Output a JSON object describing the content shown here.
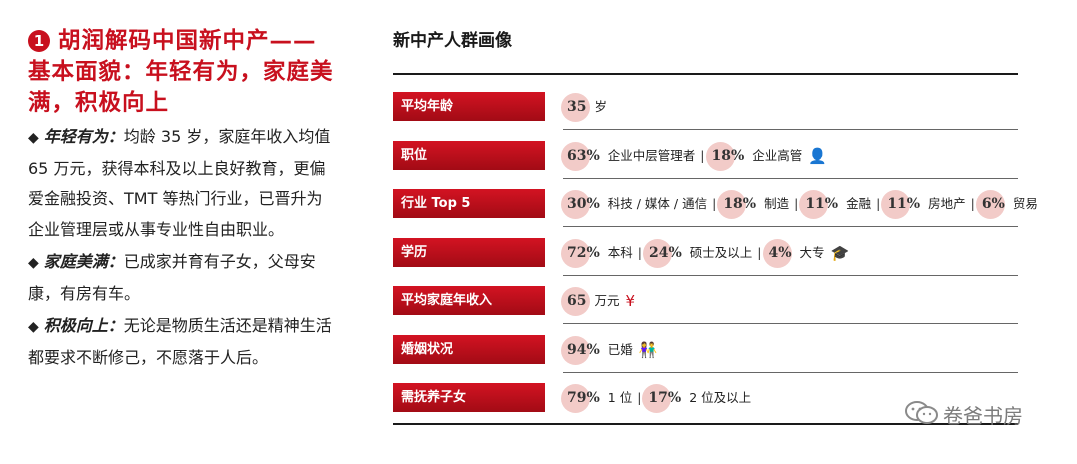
{
  "left": {
    "badge": "1",
    "heading": "胡润解码中国新中产——基本面貌：年轻有为，家庭美满，积极向上",
    "paragraphs": [
      {
        "bullet": "◆",
        "keyword": "年轻有为：",
        "text": "均龄 35 岁，家庭年收入均值 65 万元，获得本科及以上良好教育，更偏爱金融投资、TMT 等热门行业，已晋升为企业管理层或从事专业性自由职业。"
      },
      {
        "bullet": "◆",
        "keyword": "家庭美满：",
        "text": "已成家并育有子女，父母安康，有房有车。"
      },
      {
        "bullet": "◆",
        "keyword": "积极向上：",
        "text": "无论是物质生活还是精神生活都要求不断修己，不愿落于人后。"
      }
    ]
  },
  "panel": {
    "title": "新中产人群画像",
    "rows": [
      {
        "label": "平均年龄",
        "segments": [
          {
            "pct": "35",
            "after": " 岁"
          }
        ]
      },
      {
        "label": "职位",
        "icon": "person-icon",
        "icon_glyph": "👤",
        "segments": [
          {
            "pct": "63%",
            "after": " 企业中层管理者"
          },
          {
            "pct": "18%",
            "after": " 企业高管"
          }
        ]
      },
      {
        "label": "行业 Top 5",
        "segments": [
          {
            "pct": "30%",
            "after": " 科技 / 媒体 / 通信"
          },
          {
            "pct": "18%",
            "after": " 制造"
          },
          {
            "pct": "11%",
            "after": " 金融"
          },
          {
            "pct": "11%",
            "after": " 房地产"
          },
          {
            "pct": "6%",
            "after": " 贸易"
          }
        ]
      },
      {
        "label": "学历",
        "icon": "graduation-cap-icon",
        "icon_glyph": "🎓",
        "segments": [
          {
            "pct": "72%",
            "after": " 本科"
          },
          {
            "pct": "24%",
            "after": " 硕士及以上"
          },
          {
            "pct": "4%",
            "after": " 大专"
          }
        ]
      },
      {
        "label": "平均家庭年收入",
        "icon": "yuan-icon",
        "icon_glyph": "¥",
        "segments": [
          {
            "pct": "65",
            "after": " 万元"
          }
        ]
      },
      {
        "label": "婚姻状况",
        "icon": "couple-icon",
        "icon_glyph": "👫",
        "segments": [
          {
            "pct": "94%",
            "after": " 已婚"
          }
        ]
      },
      {
        "label": "需抚养子女",
        "segments": [
          {
            "pct": "79%",
            "after": " 1 位"
          },
          {
            "pct": "17%",
            "after": " 2 位及以上"
          }
        ]
      }
    ]
  },
  "watermark": {
    "text": "卷爸书房",
    "icon": "wechat-icon"
  }
}
